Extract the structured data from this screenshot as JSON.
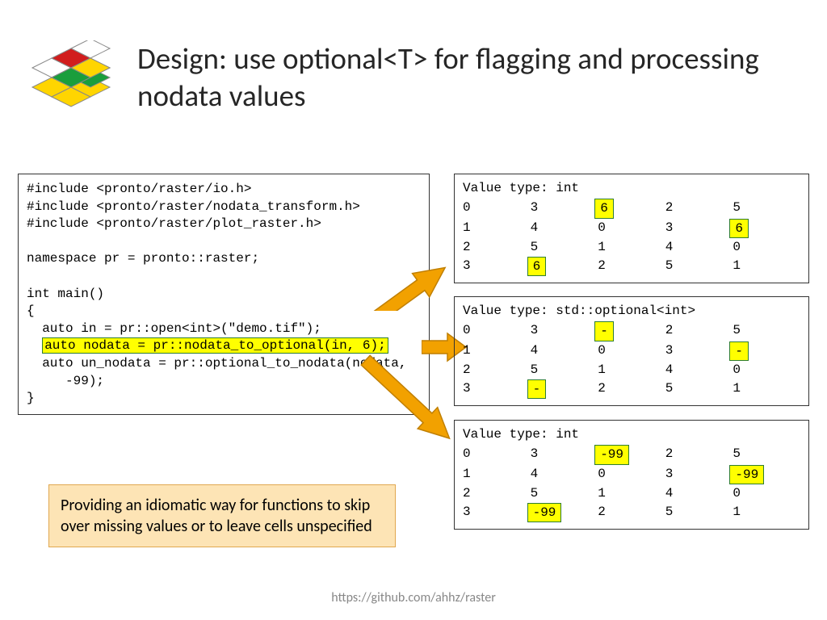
{
  "title": "Design: use optional<T> for flagging and processing nodata values",
  "code": {
    "inc1": "#include <pronto/raster/io.h>",
    "inc2": "#include <pronto/raster/nodata_transform.h>",
    "inc3": "#include <pronto/raster/plot_raster.h>",
    "ns": "namespace pr = pronto::raster;",
    "main": "int main()",
    "ob": "{",
    "l1": "  auto in = pr::open<int>(\"demo.tif\");",
    "hl_pre": "  ",
    "hl": "auto nodata = pr::nodata_to_optional(in, 6);",
    "l3a": "  auto un_nodata = pr::optional_to_nodata(nodata,",
    "l3b": "     -99);",
    "cb": "}"
  },
  "callout": "Providing an idiomatic way for functions to skip over missing values or to leave cells unspecified",
  "tables": {
    "t1": {
      "header": "Value type: int",
      "rows": [
        [
          {
            "v": "0"
          },
          {
            "v": "3"
          },
          {
            "v": "6",
            "hl": true
          },
          {
            "v": "2"
          },
          {
            "v": "5"
          }
        ],
        [
          {
            "v": "1"
          },
          {
            "v": "4"
          },
          {
            "v": "0"
          },
          {
            "v": "3"
          },
          {
            "v": "6",
            "hl": true
          }
        ],
        [
          {
            "v": "2"
          },
          {
            "v": "5"
          },
          {
            "v": "1"
          },
          {
            "v": "4"
          },
          {
            "v": "0"
          }
        ],
        [
          {
            "v": "3"
          },
          {
            "v": "6",
            "hl": true
          },
          {
            "v": "2"
          },
          {
            "v": "5"
          },
          {
            "v": "1"
          }
        ]
      ]
    },
    "t2": {
      "header": "Value type: std::optional<int>",
      "rows": [
        [
          {
            "v": "0"
          },
          {
            "v": "3"
          },
          {
            "v": "-",
            "hl": true
          },
          {
            "v": "2"
          },
          {
            "v": "5"
          }
        ],
        [
          {
            "v": "1"
          },
          {
            "v": "4"
          },
          {
            "v": "0"
          },
          {
            "v": "3"
          },
          {
            "v": "-",
            "hl": true
          }
        ],
        [
          {
            "v": "2"
          },
          {
            "v": "5"
          },
          {
            "v": "1"
          },
          {
            "v": "4"
          },
          {
            "v": "0"
          }
        ],
        [
          {
            "v": "3"
          },
          {
            "v": "-",
            "hl": true
          },
          {
            "v": "2"
          },
          {
            "v": "5"
          },
          {
            "v": "1"
          }
        ]
      ]
    },
    "t3": {
      "header": "Value type: int",
      "rows": [
        [
          {
            "v": "0"
          },
          {
            "v": "3"
          },
          {
            "v": "-99",
            "hl": true
          },
          {
            "v": "2"
          },
          {
            "v": "5"
          }
        ],
        [
          {
            "v": "1"
          },
          {
            "v": "4"
          },
          {
            "v": "0"
          },
          {
            "v": "3"
          },
          {
            "v": "-99",
            "hl": true
          }
        ],
        [
          {
            "v": "2"
          },
          {
            "v": "5"
          },
          {
            "v": "1"
          },
          {
            "v": "4"
          },
          {
            "v": "0"
          }
        ],
        [
          {
            "v": "3"
          },
          {
            "v": "-99",
            "hl": true
          },
          {
            "v": "2"
          },
          {
            "v": "5"
          },
          {
            "v": "1"
          }
        ]
      ]
    }
  },
  "colors": {
    "highlight_bg": "#ffff00",
    "highlight_border": "#2e7d32",
    "callout_bg": "#fde4b5",
    "callout_border": "#e0a850",
    "arrow_fill": "#f2a100",
    "arrow_border": "#c07f00"
  },
  "footer": "https://github.com/ahhz/raster"
}
